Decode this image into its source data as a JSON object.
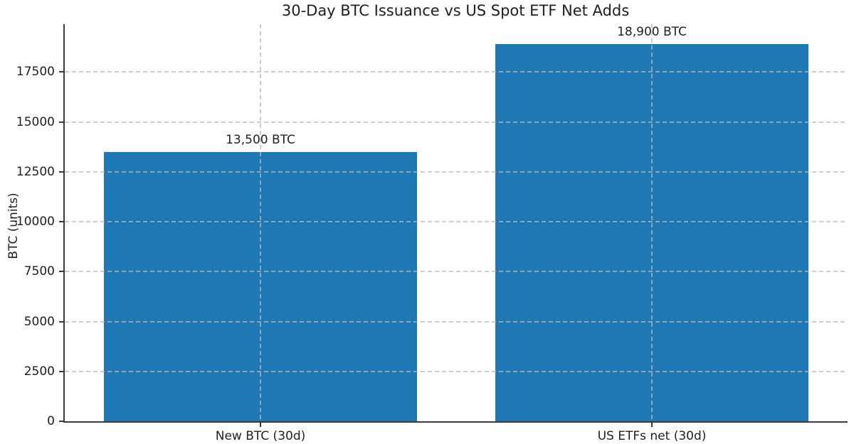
{
  "figure": {
    "background_color": "#ffffff",
    "text_color": "#1f1f1f",
    "spine_color": "#3a3a3a",
    "gridline_style": "dashed"
  },
  "chart_data": {
    "type": "bar",
    "title": "30-Day BTC Issuance vs US Spot ETF Net Adds",
    "categories": [
      "New BTC (30d)",
      "US ETFs net (30d)"
    ],
    "values": [
      13500,
      18900
    ],
    "bar_labels": [
      "13,500 BTC",
      "18,900 BTC"
    ],
    "xlabel": "",
    "ylabel": "BTC (units)",
    "yticks": [
      0,
      2500,
      5000,
      7500,
      10000,
      12500,
      15000,
      17500
    ],
    "ylim": [
      0,
      19900
    ],
    "bar_color": "#1f77b4",
    "grid": "on",
    "grid_over_bars": true,
    "legend": "none"
  }
}
